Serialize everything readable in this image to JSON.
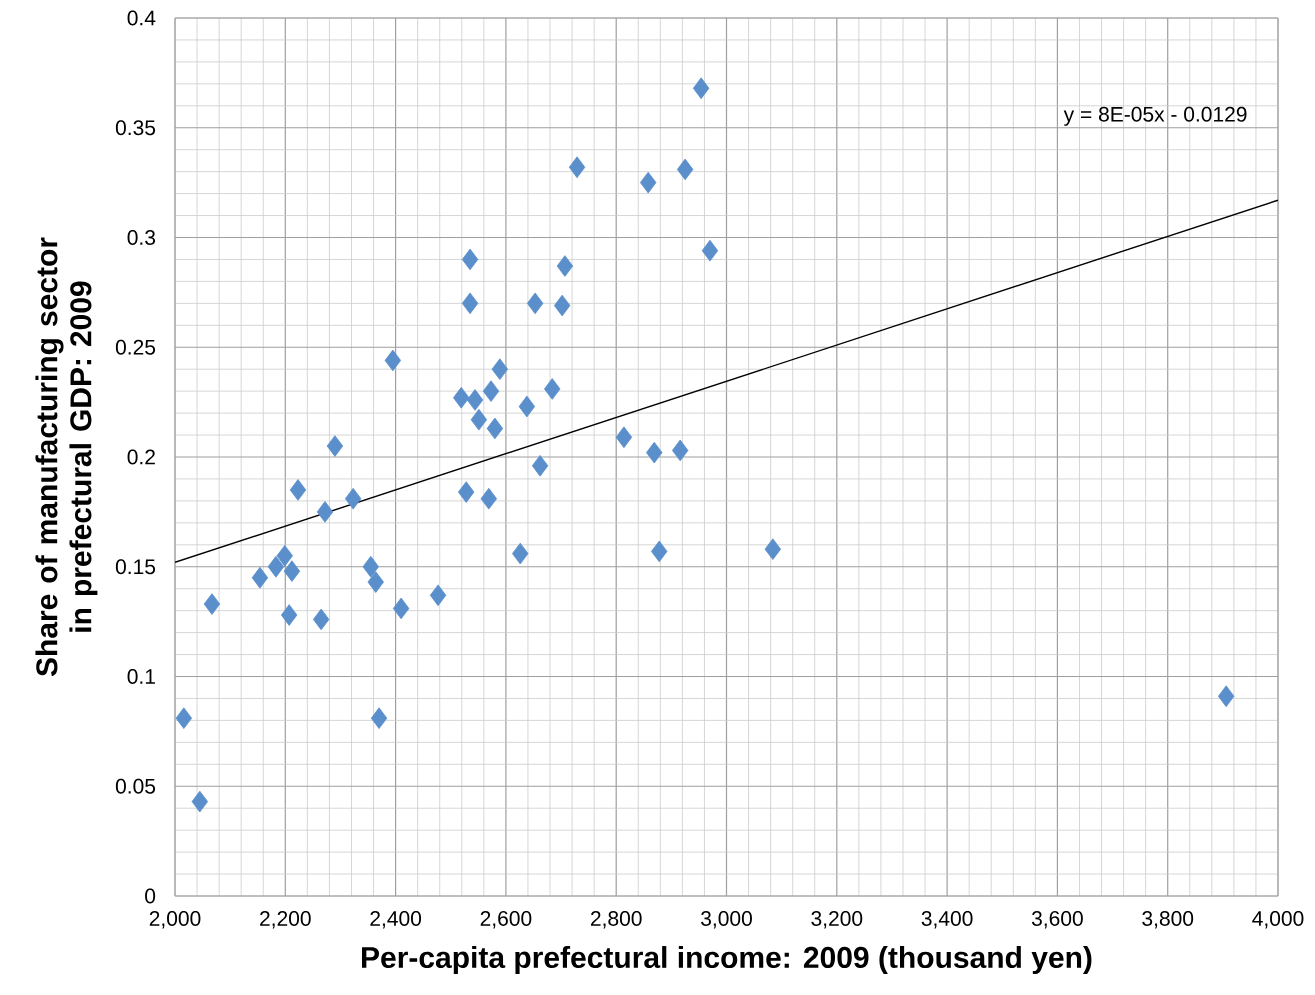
{
  "chart_data": {
    "type": "scatter",
    "xlabel": "Per-capita prefectural income: 2009  (thousand yen)",
    "ylabel": "Share of manufacturing sector in prefectural GDP: 2009",
    "xlim": [
      2000,
      4000
    ],
    "xticks": [
      {
        "value": 2000,
        "label": "2,000"
      },
      {
        "value": 2200,
        "label": "2,200"
      },
      {
        "value": 2400,
        "label": "2,400"
      },
      {
        "value": 2600,
        "label": "2,600"
      },
      {
        "value": 2800,
        "label": "2,800"
      },
      {
        "value": 3000,
        "label": "3,000"
      },
      {
        "value": 3200,
        "label": "3,200"
      },
      {
        "value": 3400,
        "label": "3,400"
      },
      {
        "value": 3600,
        "label": "3,600"
      },
      {
        "value": 3800,
        "label": "3,800"
      },
      {
        "value": 4000,
        "label": "4,000"
      }
    ],
    "ylim": [
      0,
      0.4
    ],
    "yticks": [
      0,
      0.05,
      0.1,
      0.15,
      0.2,
      0.25,
      0.3,
      0.35,
      0.4
    ],
    "grid": true,
    "marker": "diamond",
    "annotations": [
      "y = 8E-05x - 0.0129"
    ],
    "series": [
      {
        "color": "#5b8fcc",
        "x": [
          2016,
          2045,
          2067,
          2154,
          2183,
          2199,
          2212,
          2207,
          2223,
          2265,
          2272,
          2290,
          2323,
          2355,
          2364,
          2370,
          2395,
          2410,
          2477,
          2519,
          2528,
          2535,
          2535,
          2544,
          2551,
          2569,
          2573,
          2580,
          2589,
          2626,
          2638,
          2653,
          2662,
          2684,
          2702,
          2707,
          2729,
          2814,
          2858,
          2869,
          2878,
          2916,
          2925,
          2954,
          2970,
          3084,
          3906
        ],
        "values": [
          0.081,
          0.043,
          0.133,
          0.145,
          0.15,
          0.155,
          0.148,
          0.128,
          0.185,
          0.126,
          0.175,
          0.205,
          0.181,
          0.15,
          0.143,
          0.081,
          0.244,
          0.131,
          0.137,
          0.227,
          0.184,
          0.29,
          0.27,
          0.226,
          0.217,
          0.181,
          0.23,
          0.213,
          0.24,
          0.156,
          0.223,
          0.27,
          0.196,
          0.231,
          0.269,
          0.287,
          0.332,
          0.209,
          0.325,
          0.202,
          0.157,
          0.203,
          0.331,
          0.368,
          0.294,
          0.158,
          0.091
        ]
      },
      {
        "type": "line",
        "marker": "none",
        "color": "#000000",
        "x": [
          2000,
          4000
        ],
        "values": [
          0.152,
          0.317
        ]
      }
    ]
  }
}
